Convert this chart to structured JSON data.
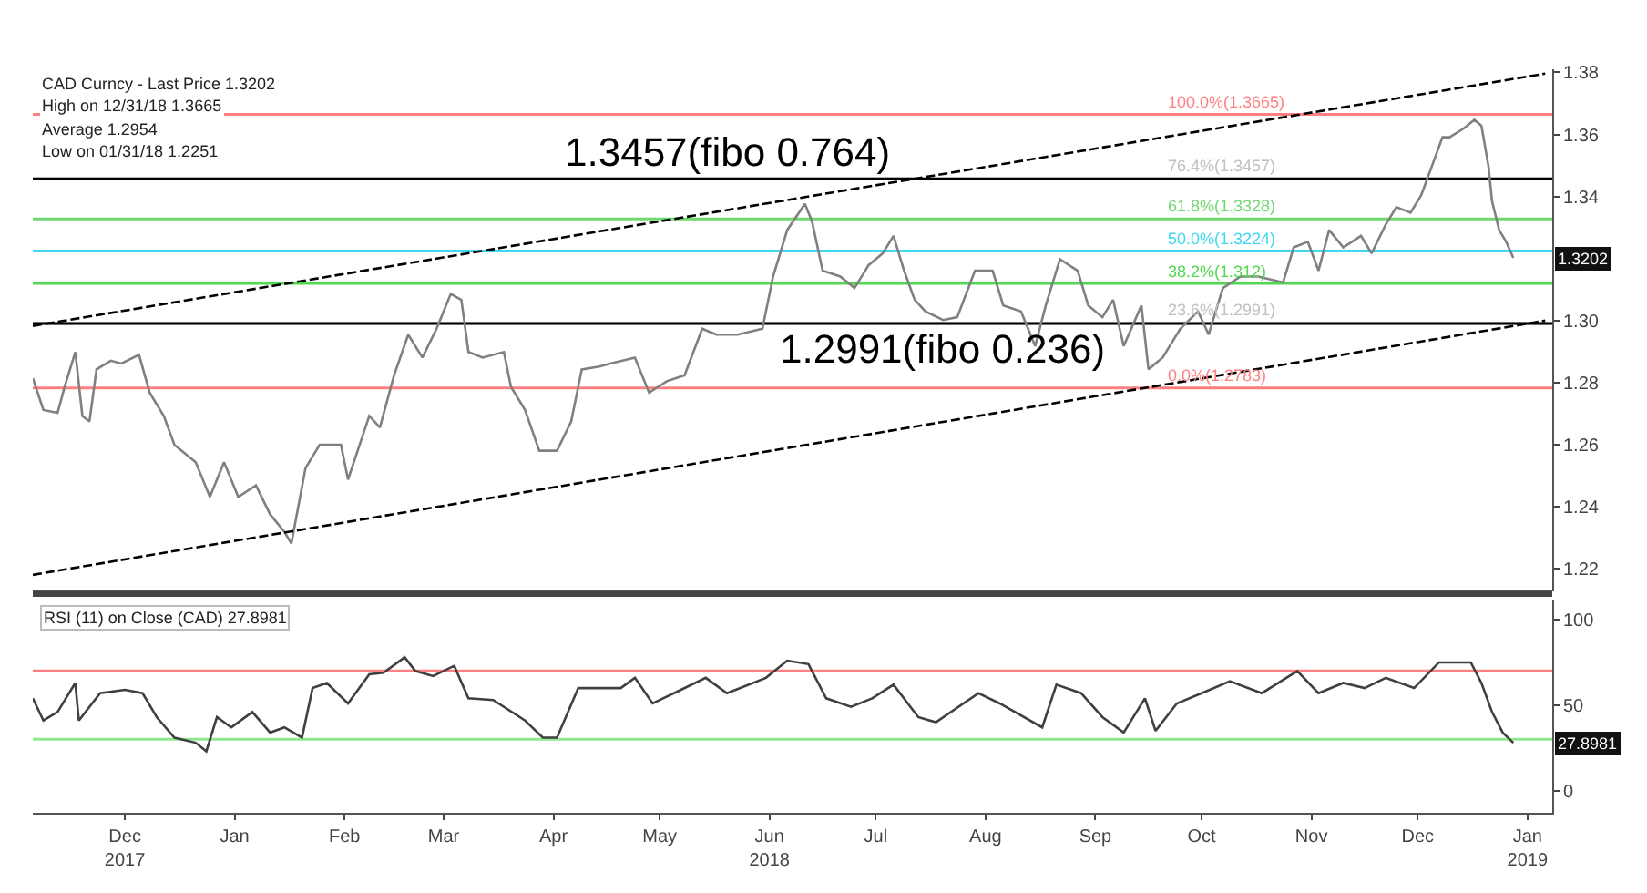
{
  "chart_data": [
    {
      "type": "line",
      "xlim": [
        "2017-11-19",
        "2019-01-22"
      ],
      "ylim": [
        1.2133,
        1.381
      ],
      "yticks": [
        1.22,
        1.24,
        1.26,
        1.28,
        {
          "value": 1.3,
          "label": "1.30"
        },
        1.34,
        1.36,
        1.38
      ],
      "tick_labels": "y",
      "series": [
        {
          "color": "#808080",
          "x": [
            "2017-11-19",
            "2017-11-22",
            "2017-11-26",
            "2017-11-28",
            "2017-12-01",
            "2017-12-03",
            "2017-12-05",
            "2017-12-07",
            "2017-12-11",
            "2017-12-14",
            "2017-12-19",
            "2017-12-22",
            "2017-12-26",
            "2017-12-29",
            "2018-01-04",
            "2018-01-08",
            "2018-01-12",
            "2018-01-16",
            "2018-01-21",
            "2018-01-25",
            "2018-01-29",
            "2018-01-31",
            "2018-02-04",
            "2018-02-08",
            "2018-02-14",
            "2018-02-16",
            "2018-02-22",
            "2018-02-25",
            "2018-03-01",
            "2018-03-05",
            "2018-03-09",
            "2018-03-13",
            "2018-03-17",
            "2018-03-20",
            "2018-03-22",
            "2018-03-26",
            "2018-04-01",
            "2018-04-03",
            "2018-04-07",
            "2018-04-11",
            "2018-04-16",
            "2018-04-20",
            "2018-04-23",
            "2018-04-28",
            "2018-05-01",
            "2018-05-08",
            "2018-05-12",
            "2018-05-17",
            "2018-05-22",
            "2018-05-27",
            "2018-05-31",
            "2018-06-06",
            "2018-06-13",
            "2018-06-16",
            "2018-06-20",
            "2018-06-25",
            "2018-06-27",
            "2018-06-30",
            "2018-07-05",
            "2018-07-09",
            "2018-07-13",
            "2018-07-17",
            "2018-07-20",
            "2018-07-23",
            "2018-07-26",
            "2018-07-29",
            "2018-08-03",
            "2018-08-07",
            "2018-08-12",
            "2018-08-17",
            "2018-08-20",
            "2018-08-25",
            "2018-08-29",
            "2018-09-01",
            "2018-09-05",
            "2018-09-10",
            "2018-09-13",
            "2018-09-17",
            "2018-09-20",
            "2018-09-23",
            "2018-09-28",
            "2018-09-30",
            "2018-10-04",
            "2018-10-09",
            "2018-10-14",
            "2018-10-17",
            "2018-10-21",
            "2018-10-26",
            "2018-10-31",
            "2018-11-07",
            "2018-11-10",
            "2018-11-14",
            "2018-11-17",
            "2018-11-20",
            "2018-11-24",
            "2018-11-29",
            "2018-12-02",
            "2018-12-06",
            "2018-12-09",
            "2018-12-13",
            "2018-12-16",
            "2018-12-19",
            "2018-12-22",
            "2018-12-24",
            "2018-12-28",
            "2018-12-31",
            "2019-01-02",
            "2019-01-04",
            "2019-01-05",
            "2019-01-07",
            "2019-01-09",
            "2019-01-11"
          ],
          "values": [
            1.2815,
            1.2712,
            1.2703,
            1.2787,
            1.2899,
            1.2693,
            1.2675,
            1.2843,
            1.2871,
            1.2862,
            1.289,
            1.2768,
            1.2693,
            1.26,
            1.2544,
            1.2432,
            1.2544,
            1.2432,
            1.2469,
            1.2376,
            1.232,
            1.2282,
            1.2525,
            1.26,
            1.26,
            1.2488,
            1.2693,
            1.2656,
            1.2824,
            1.2955,
            1.2881,
            1.2974,
            1.3086,
            1.3067,
            1.2899,
            1.2881,
            1.2899,
            1.2787,
            1.2712,
            1.2581,
            1.2581,
            1.2675,
            1.2843,
            1.2852,
            1.2862,
            1.2881,
            1.2768,
            1.2805,
            1.2824,
            1.2974,
            1.2955,
            1.2955,
            1.2974,
            1.3142,
            1.3292,
            1.3376,
            1.332,
            1.3161,
            1.3142,
            1.3105,
            1.3179,
            1.3217,
            1.3273,
            1.3161,
            1.3067,
            1.303,
            1.3002,
            1.3011,
            1.3161,
            1.3161,
            1.3049,
            1.303,
            1.2918,
            1.3049,
            1.3198,
            1.3161,
            1.3049,
            1.3011,
            1.3067,
            1.2918,
            1.3049,
            1.2843,
            1.2881,
            1.2974,
            1.303,
            1.2955,
            1.3105,
            1.3142,
            1.3142,
            1.3123,
            1.3236,
            1.3254,
            1.3161,
            1.3292,
            1.3236,
            1.3273,
            1.3217,
            1.331,
            1.3366,
            1.3348,
            1.3404,
            1.3497,
            1.3591,
            1.3591,
            1.3619,
            1.3647,
            1.3628,
            1.3497,
            1.3385,
            1.3292,
            1.3254,
            1.3202
          ]
        },
        {
          "type": "line",
          "color": "#000000",
          "line_style": "dashed",
          "x": [
            "2017-11-19",
            "2019-01-20"
          ],
          "values": [
            1.2983,
            1.3796
          ]
        },
        {
          "type": "line",
          "color": "#000000",
          "line_style": "dashed",
          "x": [
            "2017-11-19",
            "2019-01-20"
          ],
          "values": [
            1.2181,
            1.3
          ]
        }
      ],
      "ref_lines": [
        {
          "axis": "y",
          "value": 1.3665,
          "label": "100.0%(1.3665)",
          "color": "#ff8080"
        },
        {
          "axis": "y",
          "value": 1.3457,
          "label": "76.4%(1.3457)",
          "color": "#c0c0c0"
        },
        {
          "axis": "y",
          "value": 1.3328,
          "label": "61.8%(1.3328)",
          "color": "#70d870"
        },
        {
          "axis": "y",
          "value": 1.3224,
          "label": "50.0%(1.3224)",
          "color": "#40d8f0"
        },
        {
          "axis": "y",
          "value": 1.312,
          "label": "38.2%(1.312)",
          "color": "#50d850"
        },
        {
          "axis": "y",
          "value": 1.2991,
          "label": "23.6%(1.2991)",
          "color": "#c0c0c0"
        },
        {
          "axis": "y",
          "value": 1.2783,
          "label": "0.0%(1.2783)",
          "color": "#ff8080"
        },
        {
          "axis": "y",
          "value": 1.3457,
          "label": null,
          "color": "#000000"
        },
        {
          "axis": "y",
          "value": 1.2991,
          "label": null,
          "color": "#000000"
        }
      ],
      "annotations": [
        "CAD Curncy - Last Price 1.3202",
        "High on 12/31/18 1.3665",
        "Average 1.2954",
        "Low on 01/31/18 1.2251",
        {
          "text": "1.3457(fibo 0.764)",
          "x": "2018-06-03",
          "y": 1.3457
        },
        {
          "text": "1.2991(fibo 0.236)",
          "x": "2018-08-03",
          "y": 1.2991
        },
        {
          "text": "1.3202",
          "x": "2019-01-11",
          "y": 1.3202
        }
      ]
    },
    {
      "type": "line",
      "xlim": [
        "2017-11-19",
        "2019-01-22"
      ],
      "ylim": [
        -13,
        111
      ],
      "xticks": [
        {
          "value": "2017-12-15",
          "label": "Dec\n2017"
        },
        {
          "value": "2018-01-15",
          "label": "Jan"
        },
        {
          "value": "2018-02-15",
          "label": "Feb"
        },
        {
          "value": "2018-03-15",
          "label": "Mar"
        },
        {
          "value": "2018-04-15",
          "label": "Apr"
        },
        {
          "value": "2018-05-15",
          "label": "May"
        },
        {
          "value": "2018-06-15",
          "label": "Jun\n2018"
        },
        {
          "value": "2018-07-15",
          "label": "Jul"
        },
        {
          "value": "2018-08-15",
          "label": "Aug"
        },
        {
          "value": "2018-09-15",
          "label": "Sep"
        },
        {
          "value": "2018-10-15",
          "label": "Oct"
        },
        {
          "value": "2018-11-15",
          "label": "Nov"
        },
        {
          "value": "2018-12-15",
          "label": "Dec"
        },
        {
          "value": "2019-01-15",
          "label": "Jan\n2019"
        }
      ],
      "yticks": [
        0,
        50,
        100
      ],
      "series": [
        {
          "color": "#404040",
          "x": [
            "2017-11-19",
            "2017-11-22",
            "2017-11-26",
            "2017-12-01",
            "2017-12-02",
            "2017-12-08",
            "2017-12-15",
            "2017-12-20",
            "2017-12-24",
            "2017-12-29",
            "2018-01-04",
            "2018-01-07",
            "2018-01-10",
            "2018-01-14",
            "2018-01-20",
            "2018-01-25",
            "2018-01-29",
            "2018-02-03",
            "2018-02-06",
            "2018-02-10",
            "2018-02-16",
            "2018-02-22",
            "2018-02-26",
            "2018-03-04",
            "2018-03-07",
            "2018-03-12",
            "2018-03-18",
            "2018-03-22",
            "2018-03-29",
            "2018-04-07",
            "2018-04-12",
            "2018-04-16",
            "2018-04-22",
            "2018-05-04",
            "2018-05-08",
            "2018-05-13",
            "2018-05-19",
            "2018-05-28",
            "2018-06-03",
            "2018-06-14",
            "2018-06-20",
            "2018-06-26",
            "2018-07-01",
            "2018-07-08",
            "2018-07-14",
            "2018-07-20",
            "2018-07-27",
            "2018-08-01",
            "2018-08-13",
            "2018-08-19",
            "2018-08-31",
            "2018-09-04",
            "2018-09-11",
            "2018-09-17",
            "2018-09-23",
            "2018-09-29",
            "2018-10-02",
            "2018-10-08",
            "2018-10-15",
            "2018-10-23",
            "2018-11-01",
            "2018-11-11",
            "2018-11-17",
            "2018-11-24",
            "2018-11-30",
            "2018-12-06",
            "2018-12-14",
            "2018-12-21",
            "2018-12-30",
            "2019-01-02",
            "2019-01-05",
            "2019-01-08",
            "2019-01-11"
          ],
          "values": [
            54,
            41,
            46,
            63,
            41,
            57,
            59,
            57,
            43,
            31,
            28,
            23,
            43,
            37,
            46,
            34,
            37,
            31,
            60,
            63,
            51,
            68,
            69,
            78,
            70,
            67,
            73,
            54,
            53,
            41,
            31,
            31,
            60,
            60,
            66,
            51,
            57,
            66,
            57,
            66,
            76,
            74,
            54,
            49,
            54,
            62,
            43,
            40,
            57,
            51,
            37,
            62,
            57,
            43,
            34,
            54,
            35,
            51,
            57,
            64,
            57,
            70,
            57,
            63,
            60,
            66,
            60,
            75,
            75,
            63,
            46,
            34,
            28
          ]
        }
      ],
      "ref_lines": [
        {
          "axis": "y",
          "value": 70,
          "label": null,
          "color": "#ff8080"
        },
        {
          "axis": "y",
          "value": 30,
          "label": null,
          "color": "#90e890"
        }
      ],
      "annotations": [
        "RSI (11) on Close (CAD) 27.8981",
        {
          "text": "27.8981",
          "x": "2019-01-11",
          "y": 28
        }
      ]
    }
  ]
}
